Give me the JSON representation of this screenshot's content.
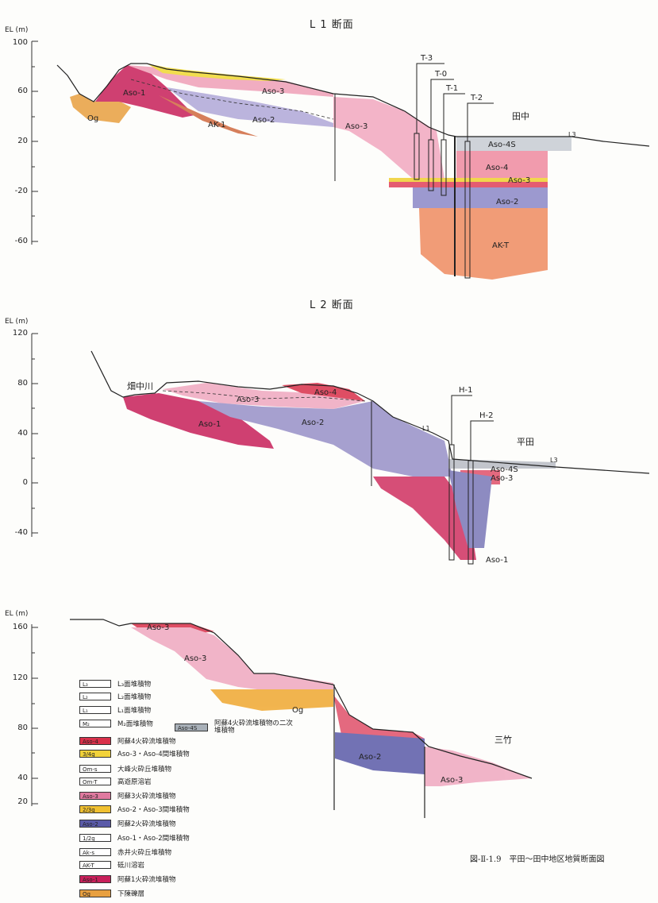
{
  "sections": [
    {
      "title": "L 1 断面",
      "axis_unit": "EL (m)",
      "ticks": [
        "100",
        "60",
        "20",
        "-20",
        "-60"
      ],
      "units": [
        "Aso-1",
        "Og",
        "Aso-3",
        "AK-1",
        "Aso-2",
        "Aso-3",
        "Aso-4S",
        "Aso-4",
        "Aso-3",
        "Aso-2",
        "AK-T"
      ],
      "boreholes": [
        "T-3",
        "T-0",
        "T-1",
        "T-2"
      ],
      "place": "田中",
      "terrace": "L3"
    },
    {
      "title": "L 2 断面",
      "axis_unit": "EL (m)",
      "ticks": [
        "120",
        "80",
        "40",
        "0",
        "-40"
      ],
      "units": [
        "Aso-1",
        "Aso-3",
        "Aso-4",
        "Aso-2",
        "Aso-4S",
        "Aso-3",
        "Aso-1"
      ],
      "boreholes": [
        "H-1",
        "H-2"
      ],
      "place_left": "畑中川",
      "place": "平田",
      "terraces": [
        "L1",
        "L3"
      ]
    },
    {
      "title": "",
      "axis_unit": "EL (m)",
      "ticks": [
        "160",
        "120",
        "80",
        "40",
        "20"
      ],
      "units": [
        "Aso-3",
        "Aso-3",
        "Og",
        "Aso-2",
        "Aso-3"
      ],
      "place": "三竹"
    }
  ],
  "legend": [
    {
      "code": "L₃",
      "label": "L₃面堆積物",
      "color": "#ffffff"
    },
    {
      "code": "L₂",
      "label": "L₂面堆積物",
      "color": "#ffffff"
    },
    {
      "code": "L₁",
      "label": "L₁面堆積物",
      "color": "#ffffff"
    },
    {
      "code": "M₂",
      "label": "M₂面堆積物",
      "color": "#ffffff"
    },
    {
      "code": "Aso-4",
      "label": "阿蘇4火砕流堆積物",
      "color": "#d9304a"
    },
    {
      "code": "3/4g",
      "label": "Aso-3・Aso-4間堆積物",
      "color": "#f2d23a"
    },
    {
      "code": "Om-s",
      "label": "大峰火砕丘堆積物",
      "color": "#ffffff"
    },
    {
      "code": "Om-T",
      "label": "高遊原溶岩",
      "color": "#ffffff"
    },
    {
      "code": "Aso-3",
      "label": "阿蘇3火砕流堆積物",
      "color": "#e07aa0"
    },
    {
      "code": "2/3g",
      "label": "Aso-2・Aso-3間堆積物",
      "color": "#f0c030"
    },
    {
      "code": "Aso-2",
      "label": "阿蘇2火砕流堆積物",
      "color": "#5a5aa8"
    },
    {
      "code": "1/2g",
      "label": "Aso-1・Aso-2間堆積物",
      "color": "#ffffff"
    },
    {
      "code": "Ak-s",
      "label": "赤井火砕丘堆積物",
      "color": "#ffffff"
    },
    {
      "code": "AK-T",
      "label": "砥川溶岩",
      "color": "#ffffff"
    },
    {
      "code": "Aso-1",
      "label": "阿蘇1火砕流堆積物",
      "color": "#c8205a"
    },
    {
      "code": "Og",
      "label": "下陳礫層",
      "color": "#e8a040"
    }
  ],
  "legend_extra": {
    "code": "Aso-4S",
    "label": "阿蘇4火砕流堆積物の二次堆積物",
    "color": "#a8b0b8"
  },
  "caption": "図-Ⅱ-1.9　平田～田中地区地質断面図"
}
